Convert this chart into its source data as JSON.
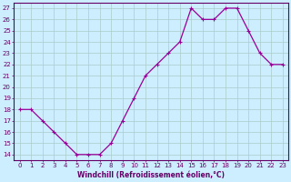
{
  "x": [
    0,
    1,
    2,
    3,
    4,
    5,
    6,
    7,
    8,
    9,
    10,
    11,
    12,
    13,
    14,
    15,
    16,
    17,
    18,
    19,
    20,
    21,
    22,
    23
  ],
  "y": [
    18,
    18,
    17,
    16,
    15,
    14,
    14,
    14,
    15,
    17,
    19,
    21,
    22,
    23,
    24,
    27,
    26,
    26,
    27,
    27,
    25,
    23,
    22,
    22
  ],
  "line_color": "#990099",
  "marker": "+",
  "marker_size": 3,
  "marker_linewidth": 0.8,
  "line_width": 0.9,
  "bg_color": "#cceeff",
  "grid_color": "#aacccc",
  "axis_color": "#660066",
  "spine_color": "#660066",
  "xlabel": "Windchill (Refroidissement éolien,°C)",
  "xlabel_fontsize": 5.5,
  "ylim": [
    13.5,
    27.5
  ],
  "xlim": [
    -0.5,
    23.5
  ],
  "yticks": [
    14,
    15,
    16,
    17,
    18,
    19,
    20,
    21,
    22,
    23,
    24,
    25,
    26,
    27
  ],
  "xticks": [
    0,
    1,
    2,
    3,
    4,
    5,
    6,
    7,
    8,
    9,
    10,
    11,
    12,
    13,
    14,
    15,
    16,
    17,
    18,
    19,
    20,
    21,
    22,
    23
  ],
  "tick_fontsize": 5.0
}
